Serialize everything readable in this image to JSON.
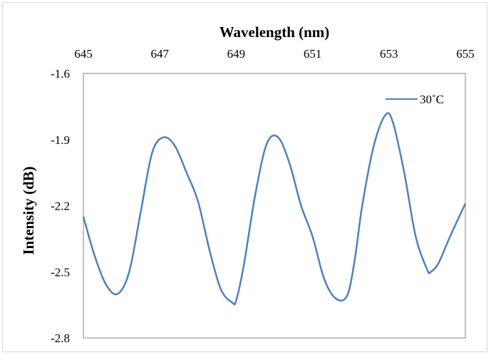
{
  "chart_data": {
    "type": "line",
    "title": "",
    "xlabel": "Wavelength (nm)",
    "ylabel": "Intensity (dB)",
    "x_axis_position": "top",
    "xlim": [
      645,
      655
    ],
    "ylim": [
      -2.8,
      -1.6
    ],
    "x_ticks": [
      645,
      647,
      649,
      651,
      653,
      655
    ],
    "x_tick_labels": [
      "645",
      "647",
      "649",
      "651",
      "653",
      "655"
    ],
    "y_ticks": [
      -1.6,
      -1.9,
      -2.2,
      -2.5,
      -2.8
    ],
    "y_tick_labels": [
      "-1.6",
      "-1.9",
      "-2.2",
      "-2.5",
      "-2.8"
    ],
    "grid": false,
    "legend_position": "top-right",
    "series": [
      {
        "name": "30˚C",
        "color": "#4f81bd",
        "x": [
          645.0,
          645.3,
          645.6,
          645.9,
          646.2,
          646.5,
          646.8,
          647.1,
          647.4,
          647.7,
          648.0,
          648.3,
          648.6,
          648.9,
          649.0,
          649.2,
          649.5,
          649.8,
          650.1,
          650.4,
          650.7,
          651.0,
          651.3,
          651.6,
          651.9,
          652.1,
          652.3,
          652.6,
          652.9,
          653.1,
          653.4,
          653.7,
          654.0,
          654.1,
          654.3,
          654.6,
          655.0
        ],
        "values": [
          -2.25,
          -2.43,
          -2.56,
          -2.6,
          -2.5,
          -2.23,
          -1.96,
          -1.89,
          -1.93,
          -2.05,
          -2.18,
          -2.4,
          -2.58,
          -2.64,
          -2.63,
          -2.47,
          -2.15,
          -1.92,
          -1.89,
          -2.01,
          -2.2,
          -2.34,
          -2.53,
          -2.62,
          -2.61,
          -2.45,
          -2.2,
          -1.93,
          -1.79,
          -1.82,
          -2.05,
          -2.34,
          -2.49,
          -2.5,
          -2.46,
          -2.34,
          -2.19
        ]
      }
    ]
  }
}
